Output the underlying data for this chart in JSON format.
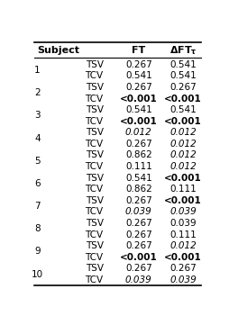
{
  "rows": [
    {
      "subject": "1",
      "vote": "TSV",
      "ft": "0.267",
      "dft": "0.541",
      "ft_bold": false,
      "dft_bold": false,
      "ft_italic": false,
      "dft_italic": false
    },
    {
      "subject": "",
      "vote": "TCV",
      "ft": "0.541",
      "dft": "0.541",
      "ft_bold": false,
      "dft_bold": false,
      "ft_italic": false,
      "dft_italic": false
    },
    {
      "subject": "2",
      "vote": "TSV",
      "ft": "0.267",
      "dft": "0.267",
      "ft_bold": false,
      "dft_bold": false,
      "ft_italic": false,
      "dft_italic": false
    },
    {
      "subject": "",
      "vote": "TCV",
      "ft": "<0.001",
      "dft": "<0.001",
      "ft_bold": true,
      "dft_bold": true,
      "ft_italic": false,
      "dft_italic": false
    },
    {
      "subject": "3",
      "vote": "TSV",
      "ft": "0.541",
      "dft": "0.541",
      "ft_bold": false,
      "dft_bold": false,
      "ft_italic": false,
      "dft_italic": false
    },
    {
      "subject": "",
      "vote": "TCV",
      "ft": "<0.001",
      "dft": "<0.001",
      "ft_bold": true,
      "dft_bold": true,
      "ft_italic": false,
      "dft_italic": false
    },
    {
      "subject": "4",
      "vote": "TSV",
      "ft": "0.012",
      "dft": "0.012",
      "ft_bold": false,
      "dft_bold": false,
      "ft_italic": true,
      "dft_italic": true
    },
    {
      "subject": "",
      "vote": "TCV",
      "ft": "0.267",
      "dft": "0.012",
      "ft_bold": false,
      "dft_bold": false,
      "ft_italic": false,
      "dft_italic": true
    },
    {
      "subject": "5",
      "vote": "TSV",
      "ft": "0.862",
      "dft": "0.012",
      "ft_bold": false,
      "dft_bold": false,
      "ft_italic": false,
      "dft_italic": true
    },
    {
      "subject": "",
      "vote": "TCV",
      "ft": "0.111",
      "dft": "0.012",
      "ft_bold": false,
      "dft_bold": false,
      "ft_italic": false,
      "dft_italic": true
    },
    {
      "subject": "6",
      "vote": "TSV",
      "ft": "0.541",
      "dft": "<0.001",
      "ft_bold": false,
      "dft_bold": true,
      "ft_italic": false,
      "dft_italic": false
    },
    {
      "subject": "",
      "vote": "TCV",
      "ft": "0.862",
      "dft": "0.111",
      "ft_bold": false,
      "dft_bold": false,
      "ft_italic": false,
      "dft_italic": false
    },
    {
      "subject": "7",
      "vote": "TSV",
      "ft": "0.267",
      "dft": "<0.001",
      "ft_bold": false,
      "dft_bold": true,
      "ft_italic": false,
      "dft_italic": false
    },
    {
      "subject": "",
      "vote": "TCV",
      "ft": "0.039",
      "dft": "0.039",
      "ft_bold": false,
      "dft_bold": false,
      "ft_italic": true,
      "dft_italic": true
    },
    {
      "subject": "8",
      "vote": "TSV",
      "ft": "0.267",
      "dft": "0.039",
      "ft_bold": false,
      "dft_bold": false,
      "ft_italic": false,
      "dft_italic": false
    },
    {
      "subject": "",
      "vote": "TCV",
      "ft": "0.267",
      "dft": "0.111",
      "ft_bold": false,
      "dft_bold": false,
      "ft_italic": false,
      "dft_italic": false
    },
    {
      "subject": "9",
      "vote": "TSV",
      "ft": "0.267",
      "dft": "0.012",
      "ft_bold": false,
      "dft_bold": false,
      "ft_italic": false,
      "dft_italic": true
    },
    {
      "subject": "",
      "vote": "TCV",
      "ft": "<0.001",
      "dft": "<0.001",
      "ft_bold": true,
      "dft_bold": true,
      "ft_italic": false,
      "dft_italic": false
    },
    {
      "subject": "10",
      "vote": "TSV",
      "ft": "0.267",
      "dft": "0.267",
      "ft_bold": false,
      "dft_bold": false,
      "ft_italic": false,
      "dft_italic": false
    },
    {
      "subject": "",
      "vote": "TCV",
      "ft": "0.039",
      "dft": "0.039",
      "ft_bold": false,
      "dft_bold": false,
      "ft_italic": true,
      "dft_italic": true
    }
  ],
  "figsize": [
    2.54,
    3.61
  ],
  "dpi": 100,
  "header_fontsize": 8,
  "row_fontsize": 7.5
}
